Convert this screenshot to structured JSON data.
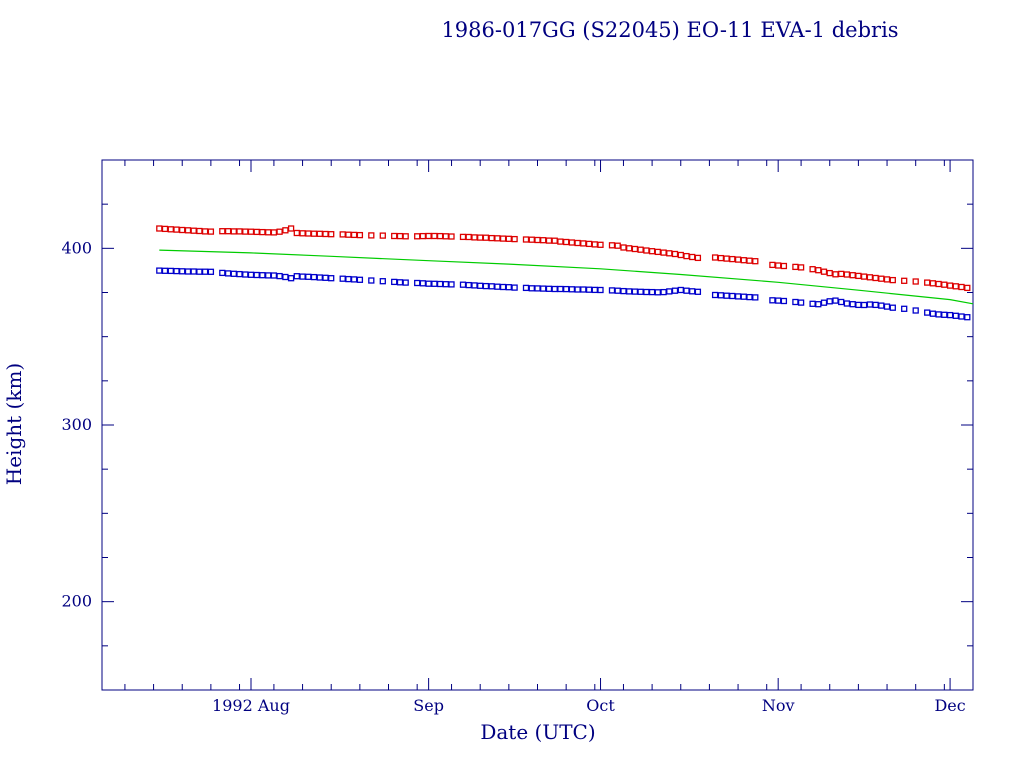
{
  "chart_data": {
    "type": "scatter",
    "title": "1986-017GG (S22045) EO-11 EVA-1 debris",
    "xlabel": "Date (UTC)",
    "ylabel": "Height (km)",
    "xlim": [
      "1992-07-06",
      "1992-12-05"
    ],
    "ylim": [
      150,
      450
    ],
    "x_ticks": [
      {
        "date": "1992-08-01",
        "label": "1992 Aug"
      },
      {
        "date": "1992-09-01",
        "label": "Sep"
      },
      {
        "date": "1992-10-01",
        "label": "Oct"
      },
      {
        "date": "1992-11-01",
        "label": "Nov"
      },
      {
        "date": "1992-12-01",
        "label": "Dec"
      }
    ],
    "y_ticks": [
      200,
      300,
      400
    ],
    "grid": false,
    "colors": {
      "axis": "#000080",
      "apogee": "#dd0000",
      "perigee": "#0000cc",
      "mean": "#00cc00"
    },
    "series": [
      {
        "type": "scatter",
        "color": "#dd0000",
        "points": [
          [
            "1992-07-16",
            411.2
          ],
          [
            "1992-07-17",
            411.0
          ],
          [
            "1992-07-18",
            410.8
          ],
          [
            "1992-07-19",
            410.6
          ],
          [
            "1992-07-20",
            410.4
          ],
          [
            "1992-07-21",
            410.2
          ],
          [
            "1992-07-22",
            410.0
          ],
          [
            "1992-07-23",
            409.8
          ],
          [
            "1992-07-24",
            409.6
          ],
          [
            "1992-07-25",
            409.5
          ],
          [
            "1992-07-27",
            409.7
          ],
          [
            "1992-07-28",
            409.7
          ],
          [
            "1992-07-29",
            409.6
          ],
          [
            "1992-07-30",
            409.6
          ],
          [
            "1992-07-31",
            409.5
          ],
          [
            "1992-08-01",
            409.4
          ],
          [
            "1992-08-02",
            409.3
          ],
          [
            "1992-08-03",
            409.2
          ],
          [
            "1992-08-04",
            409.1
          ],
          [
            "1992-08-05",
            409.0
          ],
          [
            "1992-08-06",
            409.4
          ],
          [
            "1992-08-07",
            410.2
          ],
          [
            "1992-08-08",
            411.2
          ],
          [
            "1992-08-09",
            408.7
          ],
          [
            "1992-08-10",
            408.5
          ],
          [
            "1992-08-11",
            408.4
          ],
          [
            "1992-08-12",
            408.3
          ],
          [
            "1992-08-13",
            408.2
          ],
          [
            "1992-08-14",
            408.1
          ],
          [
            "1992-08-15",
            408.0
          ],
          [
            "1992-08-17",
            407.9
          ],
          [
            "1992-08-18",
            407.7
          ],
          [
            "1992-08-19",
            407.6
          ],
          [
            "1992-08-20",
            407.5
          ],
          [
            "1992-08-22",
            407.3
          ],
          [
            "1992-08-24",
            407.2
          ],
          [
            "1992-08-26",
            407.0
          ],
          [
            "1992-08-27",
            406.9
          ],
          [
            "1992-08-28",
            406.8
          ],
          [
            "1992-08-30",
            406.8
          ],
          [
            "1992-08-31",
            406.9
          ],
          [
            "1992-09-01",
            407.0
          ],
          [
            "1992-09-02",
            407.0
          ],
          [
            "1992-09-03",
            406.9
          ],
          [
            "1992-09-04",
            406.8
          ],
          [
            "1992-09-05",
            406.7
          ],
          [
            "1992-09-07",
            406.5
          ],
          [
            "1992-09-08",
            406.4
          ],
          [
            "1992-09-09",
            406.2
          ],
          [
            "1992-09-10",
            406.1
          ],
          [
            "1992-09-11",
            406.0
          ],
          [
            "1992-09-12",
            405.8
          ],
          [
            "1992-09-13",
            405.7
          ],
          [
            "1992-09-14",
            405.5
          ],
          [
            "1992-09-15",
            405.4
          ],
          [
            "1992-09-16",
            405.2
          ],
          [
            "1992-09-18",
            405.0
          ],
          [
            "1992-09-19",
            404.9
          ],
          [
            "1992-09-20",
            404.7
          ],
          [
            "1992-09-21",
            404.6
          ],
          [
            "1992-09-22",
            404.4
          ],
          [
            "1992-09-23",
            404.3
          ],
          [
            "1992-09-24",
            403.8
          ],
          [
            "1992-09-25",
            403.6
          ],
          [
            "1992-09-26",
            403.3
          ],
          [
            "1992-09-27",
            403.0
          ],
          [
            "1992-09-28",
            402.8
          ],
          [
            "1992-09-29",
            402.5
          ],
          [
            "1992-09-30",
            402.2
          ],
          [
            "1992-10-01",
            402.0
          ],
          [
            "1992-10-03",
            401.7
          ],
          [
            "1992-10-04",
            401.5
          ],
          [
            "1992-10-05",
            400.5
          ],
          [
            "1992-10-06",
            400.0
          ],
          [
            "1992-10-07",
            399.6
          ],
          [
            "1992-10-08",
            399.2
          ],
          [
            "1992-10-09",
            398.8
          ],
          [
            "1992-10-10",
            398.4
          ],
          [
            "1992-10-11",
            398.0
          ],
          [
            "1992-10-12",
            397.6
          ],
          [
            "1992-10-13",
            397.2
          ],
          [
            "1992-10-14",
            396.8
          ],
          [
            "1992-10-15",
            396.2
          ],
          [
            "1992-10-16",
            395.6
          ],
          [
            "1992-10-17",
            395.1
          ],
          [
            "1992-10-18",
            394.6
          ],
          [
            "1992-10-21",
            394.8
          ],
          [
            "1992-10-22",
            394.5
          ],
          [
            "1992-10-23",
            394.2
          ],
          [
            "1992-10-24",
            393.9
          ],
          [
            "1992-10-25",
            393.6
          ],
          [
            "1992-10-26",
            393.3
          ],
          [
            "1992-10-27",
            393.0
          ],
          [
            "1992-10-28",
            392.7
          ],
          [
            "1992-10-31",
            390.6
          ],
          [
            "1992-11-01",
            390.3
          ],
          [
            "1992-11-02",
            390.0
          ],
          [
            "1992-11-04",
            389.5
          ],
          [
            "1992-11-05",
            389.2
          ],
          [
            "1992-11-07",
            388.2
          ],
          [
            "1992-11-08",
            387.6
          ],
          [
            "1992-11-09",
            386.8
          ],
          [
            "1992-11-10",
            386.0
          ],
          [
            "1992-11-11",
            385.3
          ],
          [
            "1992-11-12",
            385.5
          ],
          [
            "1992-11-13",
            385.2
          ],
          [
            "1992-11-14",
            384.8
          ],
          [
            "1992-11-15",
            384.4
          ],
          [
            "1992-11-16",
            384.0
          ],
          [
            "1992-11-17",
            383.6
          ],
          [
            "1992-11-18",
            383.2
          ],
          [
            "1992-11-19",
            382.8
          ],
          [
            "1992-11-20",
            382.4
          ],
          [
            "1992-11-21",
            382.0
          ],
          [
            "1992-11-23",
            381.6
          ],
          [
            "1992-11-25",
            381.2
          ],
          [
            "1992-11-27",
            380.6
          ],
          [
            "1992-11-28",
            380.2
          ],
          [
            "1992-11-29",
            379.8
          ],
          [
            "1992-11-30",
            379.4
          ],
          [
            "1992-12-01",
            378.9
          ],
          [
            "1992-12-02",
            378.5
          ],
          [
            "1992-12-03",
            378.1
          ],
          [
            "1992-12-04",
            377.6
          ]
        ]
      },
      {
        "type": "scatter",
        "color": "#0000cc",
        "points": [
          [
            "1992-07-16",
            387.4
          ],
          [
            "1992-07-17",
            387.3
          ],
          [
            "1992-07-18",
            387.2
          ],
          [
            "1992-07-19",
            387.1
          ],
          [
            "1992-07-20",
            387.0
          ],
          [
            "1992-07-21",
            386.9
          ],
          [
            "1992-07-22",
            386.9
          ],
          [
            "1992-07-23",
            386.8
          ],
          [
            "1992-07-24",
            386.8
          ],
          [
            "1992-07-25",
            386.7
          ],
          [
            "1992-07-27",
            386.1
          ],
          [
            "1992-07-28",
            385.8
          ],
          [
            "1992-07-29",
            385.6
          ],
          [
            "1992-07-30",
            385.4
          ],
          [
            "1992-07-31",
            385.2
          ],
          [
            "1992-08-01",
            385.0
          ],
          [
            "1992-08-02",
            384.9
          ],
          [
            "1992-08-03",
            384.8
          ],
          [
            "1992-08-04",
            384.7
          ],
          [
            "1992-08-05",
            384.6
          ],
          [
            "1992-08-06",
            384.3
          ],
          [
            "1992-08-07",
            383.8
          ],
          [
            "1992-08-08",
            383.1
          ],
          [
            "1992-08-09",
            384.2
          ],
          [
            "1992-08-10",
            384.0
          ],
          [
            "1992-08-11",
            383.9
          ],
          [
            "1992-08-12",
            383.7
          ],
          [
            "1992-08-13",
            383.5
          ],
          [
            "1992-08-14",
            383.3
          ],
          [
            "1992-08-15",
            383.1
          ],
          [
            "1992-08-17",
            382.8
          ],
          [
            "1992-08-18",
            382.6
          ],
          [
            "1992-08-19",
            382.4
          ],
          [
            "1992-08-20",
            382.2
          ],
          [
            "1992-08-22",
            381.8
          ],
          [
            "1992-08-24",
            381.4
          ],
          [
            "1992-08-26",
            381.0
          ],
          [
            "1992-08-27",
            380.8
          ],
          [
            "1992-08-28",
            380.6
          ],
          [
            "1992-08-30",
            380.4
          ],
          [
            "1992-08-31",
            380.2
          ],
          [
            "1992-09-01",
            380.0
          ],
          [
            "1992-09-02",
            379.9
          ],
          [
            "1992-09-03",
            379.8
          ],
          [
            "1992-09-04",
            379.7
          ],
          [
            "1992-09-05",
            379.6
          ],
          [
            "1992-09-07",
            379.4
          ],
          [
            "1992-09-08",
            379.2
          ],
          [
            "1992-09-09",
            379.0
          ],
          [
            "1992-09-10",
            378.8
          ],
          [
            "1992-09-11",
            378.6
          ],
          [
            "1992-09-12",
            378.5
          ],
          [
            "1992-09-13",
            378.3
          ],
          [
            "1992-09-14",
            378.1
          ],
          [
            "1992-09-15",
            378.0
          ],
          [
            "1992-09-16",
            377.8
          ],
          [
            "1992-09-18",
            377.6
          ],
          [
            "1992-09-19",
            377.4
          ],
          [
            "1992-09-20",
            377.3
          ],
          [
            "1992-09-21",
            377.2
          ],
          [
            "1992-09-22",
            377.1
          ],
          [
            "1992-09-23",
            377.0
          ],
          [
            "1992-09-24",
            377.0
          ],
          [
            "1992-09-25",
            376.9
          ],
          [
            "1992-09-26",
            376.8
          ],
          [
            "1992-09-27",
            376.7
          ],
          [
            "1992-09-28",
            376.7
          ],
          [
            "1992-09-29",
            376.6
          ],
          [
            "1992-09-30",
            376.5
          ],
          [
            "1992-10-01",
            376.4
          ],
          [
            "1992-10-03",
            376.2
          ],
          [
            "1992-10-04",
            376.0
          ],
          [
            "1992-10-05",
            375.8
          ],
          [
            "1992-10-06",
            375.6
          ],
          [
            "1992-10-07",
            375.5
          ],
          [
            "1992-10-08",
            375.4
          ],
          [
            "1992-10-09",
            375.3
          ],
          [
            "1992-10-10",
            375.2
          ],
          [
            "1992-10-11",
            375.1
          ],
          [
            "1992-10-12",
            375.2
          ],
          [
            "1992-10-13",
            375.6
          ],
          [
            "1992-10-14",
            376.0
          ],
          [
            "1992-10-15",
            376.4
          ],
          [
            "1992-10-16",
            376.0
          ],
          [
            "1992-10-17",
            375.7
          ],
          [
            "1992-10-18",
            375.4
          ],
          [
            "1992-10-21",
            373.6
          ],
          [
            "1992-10-22",
            373.4
          ],
          [
            "1992-10-23",
            373.2
          ],
          [
            "1992-10-24",
            373.0
          ],
          [
            "1992-10-25",
            372.8
          ],
          [
            "1992-10-26",
            372.6
          ],
          [
            "1992-10-27",
            372.4
          ],
          [
            "1992-10-28",
            372.2
          ],
          [
            "1992-10-31",
            370.6
          ],
          [
            "1992-11-01",
            370.4
          ],
          [
            "1992-11-02",
            370.2
          ],
          [
            "1992-11-04",
            369.6
          ],
          [
            "1992-11-05",
            369.3
          ],
          [
            "1992-11-07",
            368.6
          ],
          [
            "1992-11-08",
            368.4
          ],
          [
            "1992-11-09",
            369.2
          ],
          [
            "1992-11-10",
            370.0
          ],
          [
            "1992-11-11",
            370.4
          ],
          [
            "1992-11-12",
            369.6
          ],
          [
            "1992-11-13",
            368.8
          ],
          [
            "1992-11-14",
            368.4
          ],
          [
            "1992-11-15",
            368.0
          ],
          [
            "1992-11-16",
            367.9
          ],
          [
            "1992-11-17",
            368.2
          ],
          [
            "1992-11-18",
            368.0
          ],
          [
            "1992-11-19",
            367.6
          ],
          [
            "1992-11-20",
            367.0
          ],
          [
            "1992-11-21",
            366.4
          ],
          [
            "1992-11-23",
            365.8
          ],
          [
            "1992-11-25",
            364.8
          ],
          [
            "1992-11-27",
            363.6
          ],
          [
            "1992-11-28",
            363.0
          ],
          [
            "1992-11-29",
            362.6
          ],
          [
            "1992-11-30",
            362.4
          ],
          [
            "1992-12-01",
            362.2
          ],
          [
            "1992-12-02",
            361.8
          ],
          [
            "1992-12-03",
            361.4
          ],
          [
            "1992-12-04",
            361.0
          ]
        ]
      },
      {
        "type": "line",
        "color": "#00cc00",
        "points": [
          [
            "1992-07-16",
            399.0
          ],
          [
            "1992-08-01",
            397.4
          ],
          [
            "1992-08-15",
            395.5
          ],
          [
            "1992-09-01",
            393.0
          ],
          [
            "1992-09-15",
            391.1
          ],
          [
            "1992-10-01",
            388.4
          ],
          [
            "1992-10-15",
            385.2
          ],
          [
            "1992-11-01",
            380.8
          ],
          [
            "1992-11-15",
            376.3
          ],
          [
            "1992-12-01",
            371.0
          ],
          [
            "1992-12-05",
            368.6
          ]
        ]
      }
    ]
  }
}
